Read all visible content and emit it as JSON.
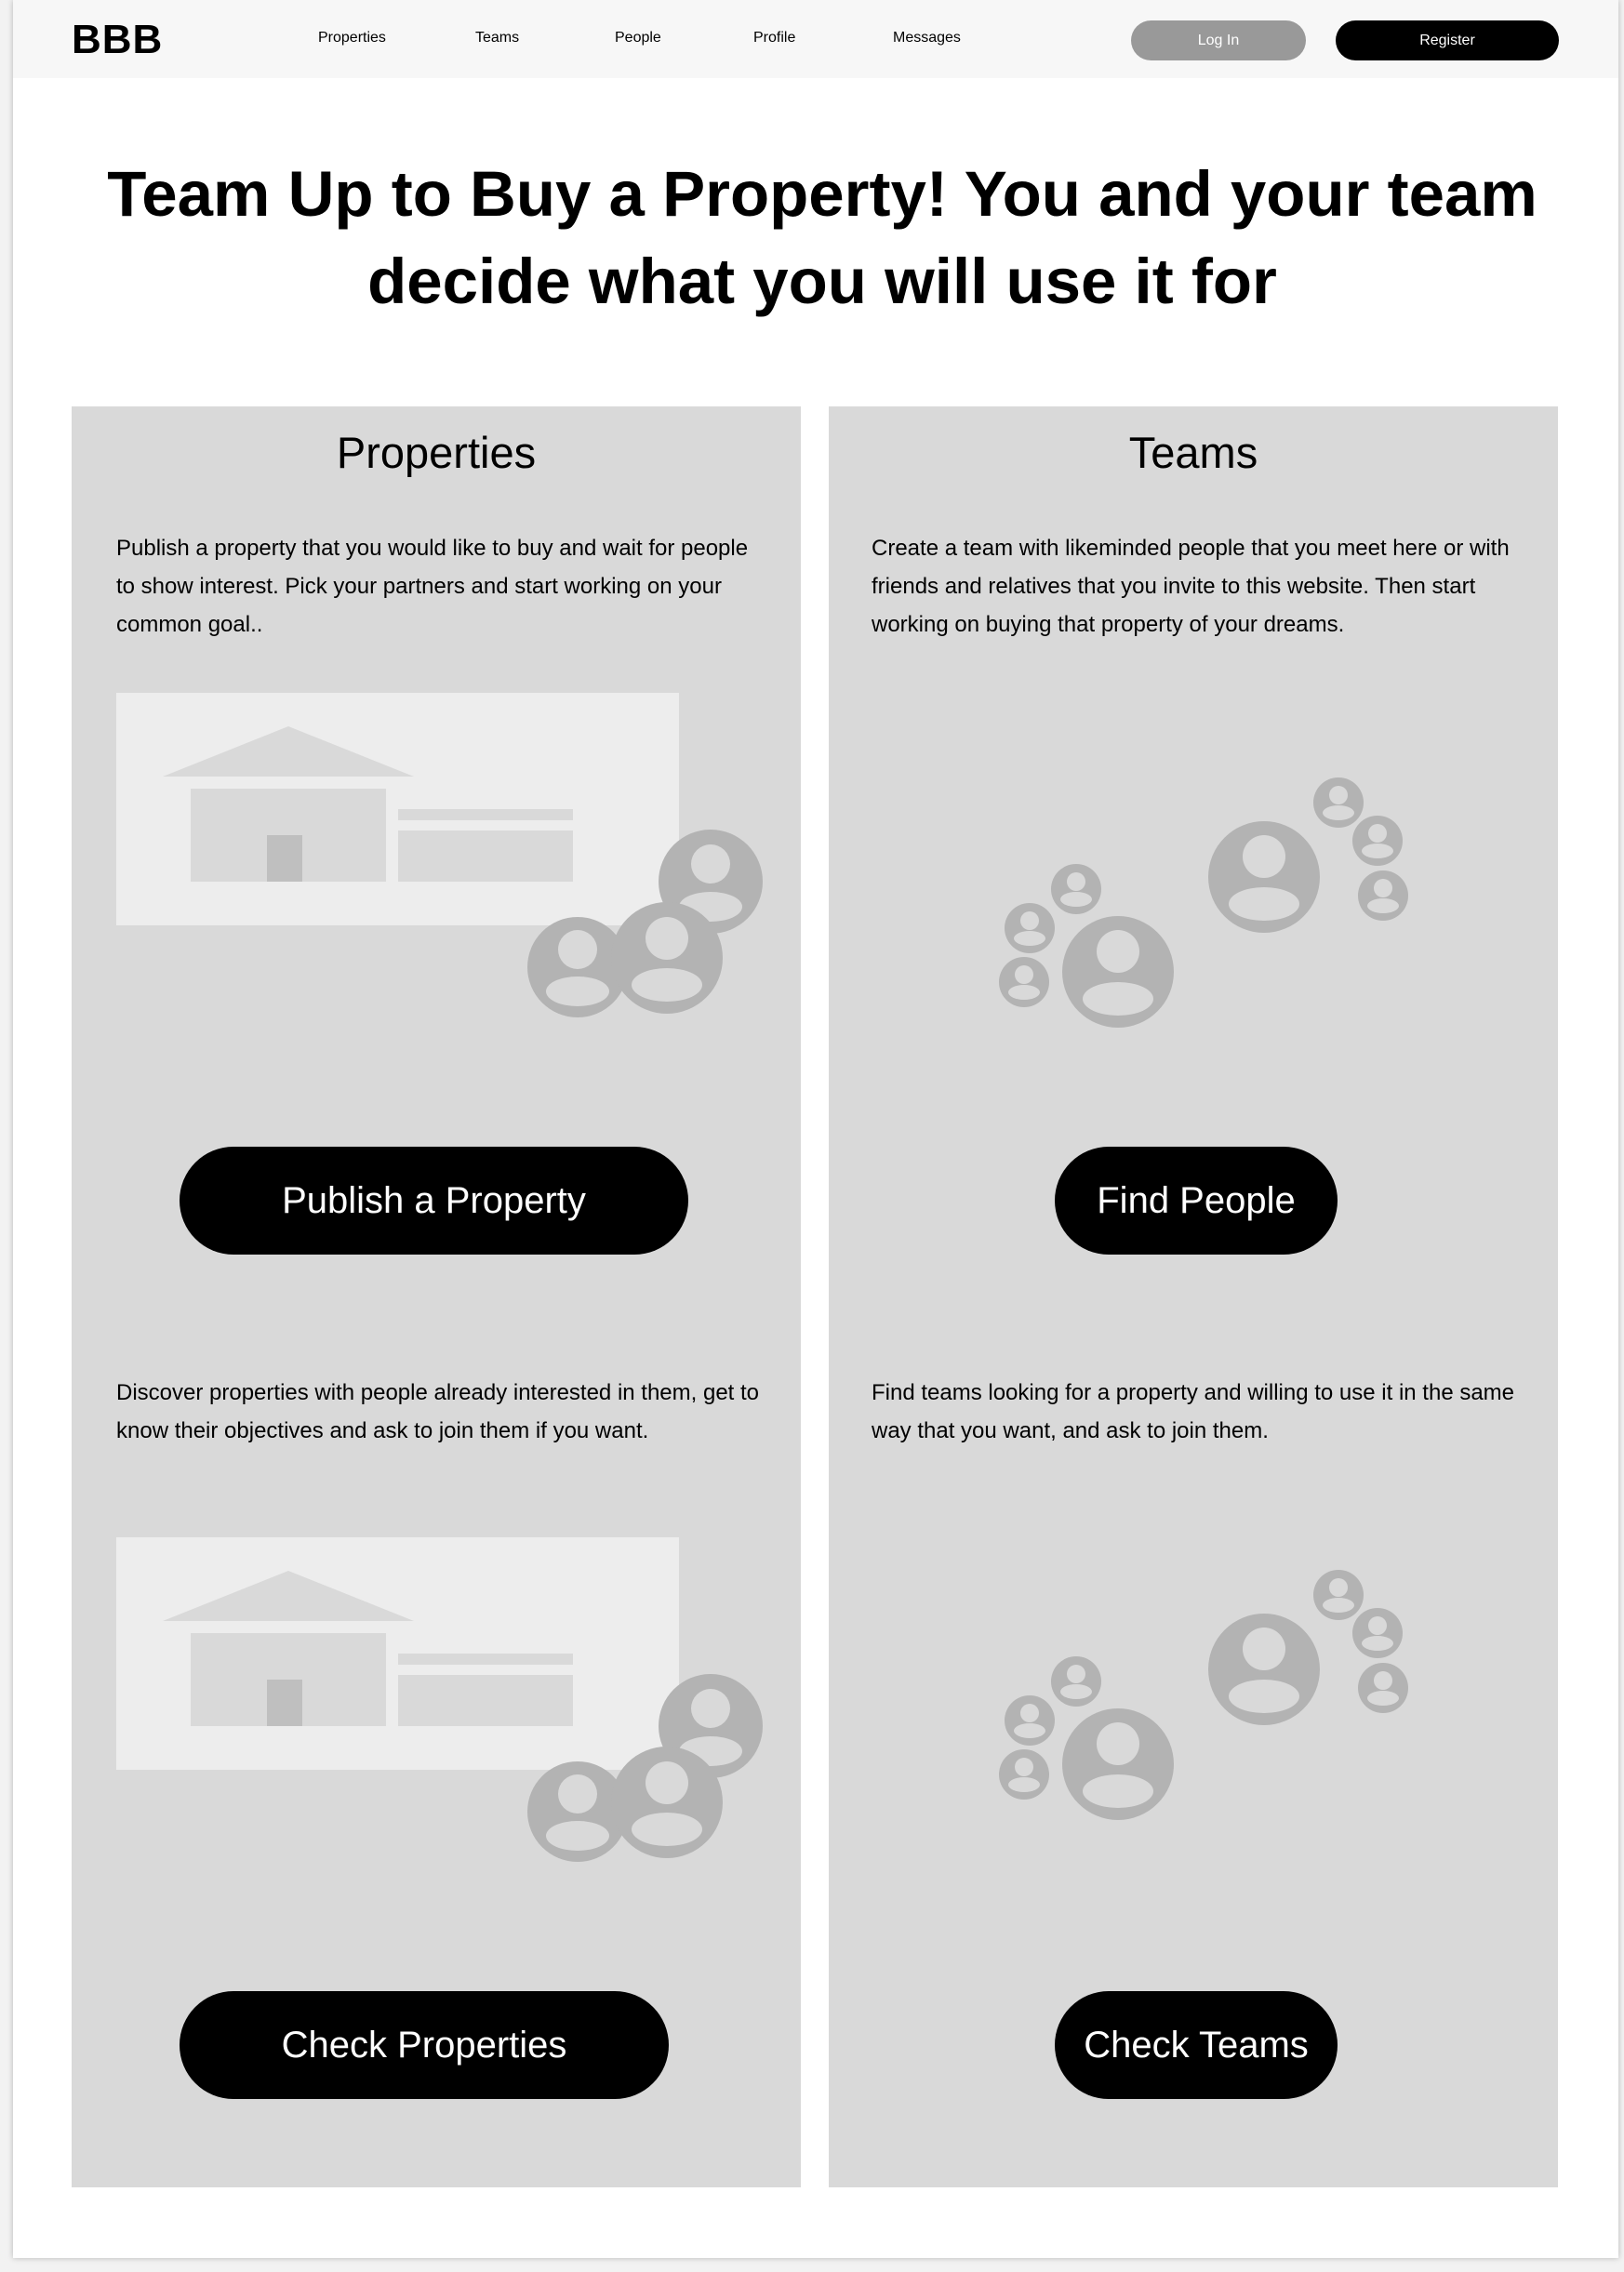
{
  "header": {
    "logo": "BBB",
    "nav": [
      "Properties",
      "Teams",
      "People",
      "Profile",
      "Messages"
    ],
    "login_label": "Log In",
    "register_label": "Register"
  },
  "hero": {
    "line1": "Team Up to Buy a Property! You and your team",
    "line2": "decide what you will use it for"
  },
  "panels": {
    "properties": {
      "title": "Properties",
      "publish_text": "Publish a property that you would like to buy and wait for people to show interest. Pick your partners and start working on your common goal..",
      "publish_button": "Publish a Property",
      "check_text": "Discover properties with people already interested in them, get to know their objectives and ask to join them if you want.",
      "check_button": "Check Properties"
    },
    "teams": {
      "title": "Teams",
      "create_text": "Create a team with likeminded people that you meet here or with friends and relatives that you invite to this website. Then start working on buying that property of your dreams.",
      "find_button": "Find People",
      "check_text": "Find teams looking for a property and willing to use it in the same way that you want, and ask to join them.",
      "check_button": "Check Teams"
    }
  },
  "icons": {
    "property_illustration": "house-with-people-icon",
    "team_illustration": "people-group-icon"
  },
  "colors": {
    "panel_bg": "#d9d9d9",
    "button_bg": "#000000",
    "login_bg": "#999999",
    "placeholder_gray": "#b3b3b3",
    "placeholder_light": "#ededed"
  }
}
